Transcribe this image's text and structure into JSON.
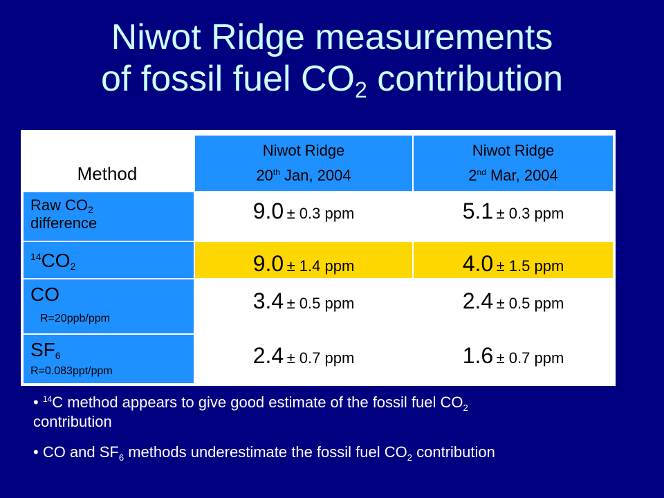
{
  "title": {
    "line1": "Niwot Ridge measurements",
    "line2_prefix": "of fossil fuel CO",
    "line2_sub": "2",
    "line2_suffix": " contribution"
  },
  "table": {
    "method_header": "Method",
    "columns": [
      {
        "name": "Niwot Ridge",
        "date_day": "20",
        "date_sup": "th",
        "date_rest": " Jan, 2004"
      },
      {
        "name": "Niwot Ridge",
        "date_day": "2",
        "date_sup": "nd",
        "date_rest": " Mar, 2004"
      }
    ],
    "rows": [
      {
        "label_main": "Raw CO",
        "label_sub": "2",
        "label_line2": "difference",
        "values": [
          {
            "num": "9.0",
            "err": "± 0.3 ppm"
          },
          {
            "num": "5.1",
            "err": "± 0.3 ppm"
          }
        ]
      },
      {
        "label_sup": "14",
        "label_main": "CO",
        "label_sub": "2",
        "values": [
          {
            "num": "9.0",
            "err": "± 1.4 ppm"
          },
          {
            "num": "4.0",
            "err": "± 1.5 ppm"
          }
        ]
      },
      {
        "label_main": "CO",
        "label_note": "R=20ppb/ppm",
        "values": [
          {
            "num": "3.4",
            "err": "± 0.5 ppm"
          },
          {
            "num": "2.4",
            "err": "± 0.5 ppm"
          }
        ]
      },
      {
        "label_main": "SF",
        "label_sub": "6",
        "label_note": "R=0.083ppt/ppm",
        "values": [
          {
            "num": "2.4",
            "err": "± 0.7 ppm"
          },
          {
            "num": "1.6",
            "err": "± 0.7 ppm"
          }
        ]
      }
    ]
  },
  "notes": [
    {
      "bullet": "• ",
      "sup": "14",
      "text1": "C method appears to give good estimate of the fossil fuel CO",
      "sub": "2",
      "text2": "contribution"
    },
    {
      "bullet": "• ",
      "text1": "CO and SF",
      "sub1": "6",
      "text2": " methods underestimate the fossil fuel CO",
      "sub2": "2",
      "text3": " contribution"
    }
  ],
  "colors": {
    "background": "#000080",
    "title": "#ccffff",
    "header_blue": "#1e90ff",
    "highlight_yellow": "#ffd700"
  }
}
